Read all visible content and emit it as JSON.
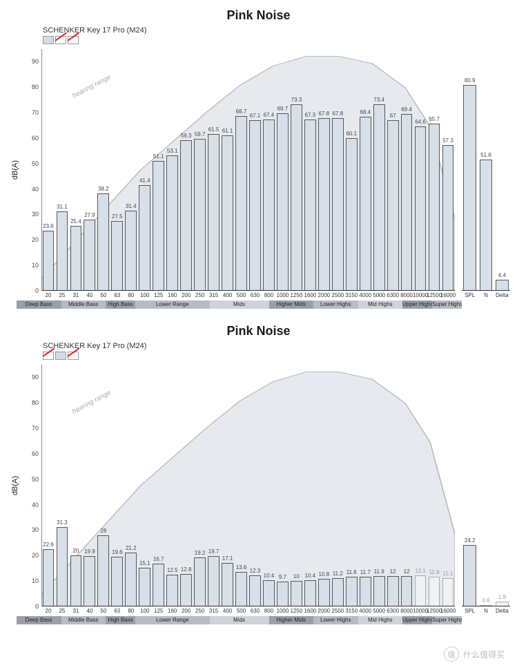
{
  "watermark": "什么值得买",
  "watermark_badge": "值",
  "charts": [
    {
      "title": "Pink Noise",
      "legend_label": "SCHENKER Key 17 Pro (M24)",
      "swatches": [
        "solid",
        "slash",
        "slash"
      ],
      "ylabel": "dB(A)",
      "ymax": 95,
      "yticks": [
        0,
        10,
        20,
        30,
        40,
        50,
        60,
        70,
        80,
        90
      ],
      "bar_fill": "#d7dfe8",
      "bar_border": "#555555",
      "background": "#ffffff",
      "hearing_label": "hearing range",
      "hearing_area_fill": "#e6eaef",
      "categories": [
        "20",
        "25",
        "31",
        "40",
        "50",
        "63",
        "80",
        "100",
        "125",
        "160",
        "200",
        "250",
        "315",
        "400",
        "500",
        "630",
        "800",
        "1000",
        "1250",
        "1600",
        "2000",
        "2500",
        "3150",
        "4000",
        "5000",
        "6300",
        "8000",
        "10000",
        "12500",
        "16000"
      ],
      "values": [
        23.6,
        31.1,
        25.4,
        27.9,
        38.2,
        27.5,
        31.4,
        41.4,
        51.1,
        53.1,
        59.3,
        59.7,
        61.5,
        61.1,
        68.7,
        67.1,
        67.4,
        69.7,
        73.3,
        67.3,
        67.8,
        67.8,
        60.1,
        68.4,
        73.4,
        67,
        69.4,
        64.6,
        65.7,
        57.3
      ],
      "ghost_from_index": null,
      "summary": {
        "labels": [
          "SPL",
          "N",
          "Delta"
        ],
        "values": [
          80.9,
          51.6,
          4.4
        ],
        "ghost": [
          false,
          false,
          false
        ]
      },
      "ranges": [
        {
          "label": "Deep Bass",
          "from": 0,
          "to": 3,
          "shade": "#9aa0a6"
        },
        {
          "label": "Middle Bass",
          "from": 3,
          "to": 6,
          "shade": "#b8bcc2"
        },
        {
          "label": "High Bass",
          "from": 6,
          "to": 8,
          "shade": "#9aa0a6"
        },
        {
          "label": "Lower Range",
          "from": 8,
          "to": 13,
          "shade": "#b8bcc2"
        },
        {
          "label": "Mids",
          "from": 13,
          "to": 17,
          "shade": "#cfd3d8"
        },
        {
          "label": "Higher Mids",
          "from": 17,
          "to": 20,
          "shade": "#9aa0a6"
        },
        {
          "label": "Lower Highs",
          "from": 20,
          "to": 23,
          "shade": "#b8bcc2"
        },
        {
          "label": "Mid Highs",
          "from": 23,
          "to": 26,
          "shade": "#cfd3d8"
        },
        {
          "label": "Upper Highs",
          "from": 26,
          "to": 28,
          "shade": "#9aa0a6"
        },
        {
          "label": "Super Highs",
          "from": 28,
          "to": 30,
          "shade": "#b8bcc2"
        }
      ]
    },
    {
      "title": "Pink Noise",
      "legend_label": "SCHENKER Key 17 Pro (M24)",
      "swatches": [
        "slash",
        "solid",
        "slash"
      ],
      "ylabel": "dB(A)",
      "ymax": 95,
      "yticks": [
        0,
        10,
        20,
        30,
        40,
        50,
        60,
        70,
        80,
        90
      ],
      "bar_fill": "#d7dfe8",
      "bar_border": "#555555",
      "background": "#ffffff",
      "hearing_label": "hearing range",
      "hearing_area_fill": "#e6eaef",
      "categories": [
        "20",
        "25",
        "31",
        "40",
        "50",
        "63",
        "80",
        "100",
        "125",
        "160",
        "200",
        "250",
        "315",
        "400",
        "500",
        "630",
        "800",
        "1000",
        "1250",
        "1600",
        "2000",
        "2500",
        "3150",
        "4000",
        "5000",
        "6300",
        "8000",
        "10000",
        "12500",
        "16000"
      ],
      "values": [
        22.6,
        31.3,
        20,
        19.9,
        28,
        19.6,
        21.2,
        15.1,
        16.7,
        12.5,
        12.8,
        19.2,
        19.7,
        17.1,
        13.6,
        12.3,
        10.4,
        9.7,
        10,
        10.4,
        10.8,
        11.2,
        11.6,
        11.7,
        11.9,
        12,
        12,
        12.1,
        11.8,
        11.1
      ],
      "ghost_from_index": 27,
      "summary": {
        "labels": [
          "SPL",
          "N",
          "Delta"
        ],
        "values": [
          24.2,
          0.6,
          1.9
        ],
        "ghost": [
          false,
          true,
          true
        ]
      },
      "ranges": [
        {
          "label": "Deep Bass",
          "from": 0,
          "to": 3,
          "shade": "#9aa0a6"
        },
        {
          "label": "Middle Bass",
          "from": 3,
          "to": 6,
          "shade": "#b8bcc2"
        },
        {
          "label": "High Bass",
          "from": 6,
          "to": 8,
          "shade": "#9aa0a6"
        },
        {
          "label": "Lower Range",
          "from": 8,
          "to": 13,
          "shade": "#b8bcc2"
        },
        {
          "label": "Mids",
          "from": 13,
          "to": 17,
          "shade": "#cfd3d8"
        },
        {
          "label": "Higher Mids",
          "from": 17,
          "to": 20,
          "shade": "#9aa0a6"
        },
        {
          "label": "Lower Highs",
          "from": 20,
          "to": 23,
          "shade": "#b8bcc2"
        },
        {
          "label": "Mid Highs",
          "from": 23,
          "to": 26,
          "shade": "#cfd3d8"
        },
        {
          "label": "Upper Highs",
          "from": 26,
          "to": 28,
          "shade": "#9aa0a6"
        },
        {
          "label": "Super Highs",
          "from": 28,
          "to": 30,
          "shade": "#b8bcc2"
        }
      ]
    }
  ],
  "hearing_curve_norm": [
    [
      0.0,
      0.05
    ],
    [
      0.08,
      0.2
    ],
    [
      0.16,
      0.35
    ],
    [
      0.24,
      0.5
    ],
    [
      0.32,
      0.62
    ],
    [
      0.4,
      0.74
    ],
    [
      0.48,
      0.85
    ],
    [
      0.56,
      0.93
    ],
    [
      0.64,
      0.97
    ],
    [
      0.72,
      0.97
    ],
    [
      0.8,
      0.94
    ],
    [
      0.88,
      0.84
    ],
    [
      0.94,
      0.68
    ],
    [
      1.0,
      0.3
    ]
  ]
}
